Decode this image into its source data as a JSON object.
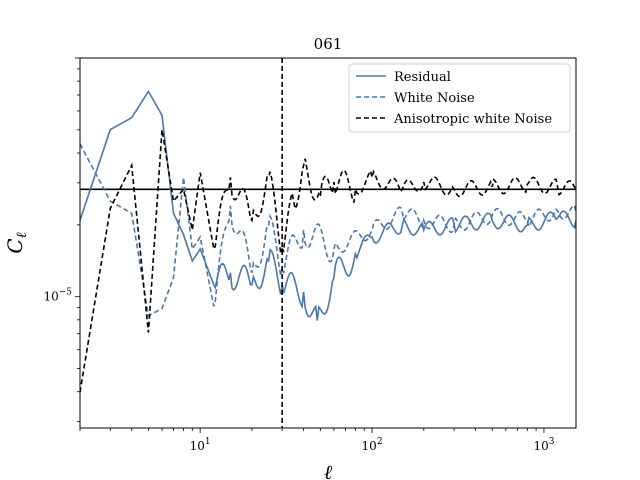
{
  "chart_data": {
    "type": "line",
    "title": "061",
    "xlabel": "ℓ",
    "ylabel": "C_ℓ",
    "xscale": "log",
    "yscale": "log",
    "xlim": [
      2,
      1536
    ],
    "ylim_exponent": [
      -5.55,
      -4.0
    ],
    "x_ticks": [
      {
        "value": 10,
        "base": "10",
        "exp": "1"
      },
      {
        "value": 100,
        "base": "10",
        "exp": "2"
      },
      {
        "value": 1000,
        "base": "10",
        "exp": "3"
      }
    ],
    "y_ticks": [
      {
        "value_exp": -5,
        "base": "10",
        "exp": "−5"
      }
    ],
    "vline_x": 30,
    "hline_y_exp": -4.55,
    "legend_position": "top-right",
    "colors": {
      "residual": "#4c78a8",
      "white_noise": "#4c78a8",
      "aniso": "#000000",
      "reference": "#000000"
    },
    "series": [
      {
        "name": "Residual",
        "style": "solid",
        "color": "#4c78a8",
        "x": [
          2,
          3,
          4,
          5,
          6,
          7,
          8,
          9,
          10,
          12,
          15,
          20,
          25,
          30,
          40,
          48,
          60,
          80,
          100,
          150,
          200,
          300,
          500,
          800,
          1200,
          1536
        ],
        "y_exp": [
          -4.68,
          -4.3,
          -4.25,
          -4.14,
          -4.24,
          -4.65,
          -4.74,
          -4.85,
          -4.8,
          -4.95,
          -4.9,
          -4.95,
          -4.85,
          -4.95,
          -4.98,
          -5.1,
          -4.92,
          -4.82,
          -4.75,
          -4.7,
          -4.72,
          -4.7,
          -4.68,
          -4.7,
          -4.67,
          -4.68
        ]
      },
      {
        "name": "White Noise",
        "style": "dashed",
        "color": "#4c78a8",
        "x": [
          2,
          3,
          4,
          5,
          6,
          7,
          8,
          9,
          10,
          12,
          15,
          20,
          25,
          30,
          40,
          60,
          100,
          150,
          200,
          300,
          500,
          800,
          1200,
          1536
        ],
        "y_exp": [
          -4.36,
          -4.6,
          -4.65,
          -5.08,
          -5.05,
          -4.92,
          -4.5,
          -4.8,
          -4.75,
          -5.04,
          -4.62,
          -4.9,
          -4.7,
          -4.88,
          -4.72,
          -4.8,
          -4.72,
          -4.65,
          -4.68,
          -4.7,
          -4.66,
          -4.68,
          -4.64,
          -4.65
        ]
      },
      {
        "name": "Anisotropic white Noise",
        "style": "dashed",
        "color": "#000000",
        "x": [
          2,
          3,
          4,
          5,
          6,
          7,
          8,
          9,
          10,
          12,
          15,
          20,
          25,
          30,
          35,
          40,
          50,
          60,
          80,
          100,
          150,
          200,
          300,
          500,
          800,
          1200,
          1536
        ],
        "y_exp": [
          -5.4,
          -4.63,
          -4.45,
          -5.15,
          -4.3,
          -4.6,
          -4.55,
          -4.72,
          -4.48,
          -4.8,
          -4.5,
          -4.68,
          -4.5,
          -4.8,
          -4.6,
          -4.45,
          -4.58,
          -4.52,
          -4.55,
          -4.5,
          -4.55,
          -4.52,
          -4.55,
          -4.54,
          -4.53,
          -4.54,
          -4.55
        ]
      }
    ]
  }
}
